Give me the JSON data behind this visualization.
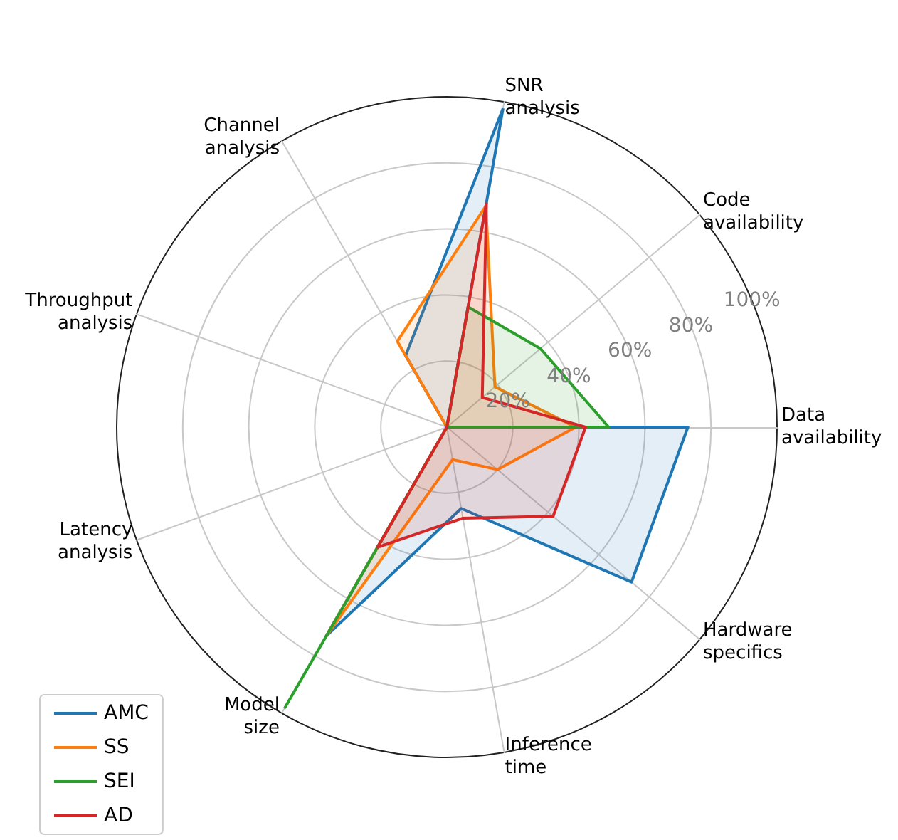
{
  "chart_data": {
    "type": "radar",
    "categories": [
      "SNR\nanalysis",
      "Code\navailability",
      "Data\navailability",
      "Hardware\nspecifics",
      "Inference\ntime",
      "Model\nsize",
      "Latency\nanalysis",
      "Throughput\nanalysis",
      "Channel\nanalysis"
    ],
    "series": [
      {
        "name": "AMC",
        "color": "#1f77b4",
        "values": [
          98,
          0,
          73,
          73,
          25,
          73,
          0,
          0,
          25
        ]
      },
      {
        "name": "SS",
        "color": "#ff7f0e",
        "values": [
          68,
          19,
          39,
          20,
          10,
          73,
          0,
          0,
          30
        ]
      },
      {
        "name": "SEI",
        "color": "#2ca02c",
        "values": [
          37,
          37,
          49,
          0,
          0,
          98,
          0,
          0,
          0
        ]
      },
      {
        "name": "AD",
        "color": "#d62728",
        "values": [
          69,
          14,
          42,
          42,
          28,
          42,
          0,
          0,
          0
        ]
      }
    ],
    "ylim": [
      0,
      100
    ],
    "yticks": [
      {
        "value": 20,
        "label": "20%"
      },
      {
        "value": 40,
        "label": "40%"
      },
      {
        "value": 60,
        "label": "60%"
      },
      {
        "value": 80,
        "label": "80%"
      },
      {
        "value": 100,
        "label": "100%"
      }
    ],
    "grid": true,
    "legend": "bottom left",
    "marker": "none",
    "line_style": "solid"
  }
}
